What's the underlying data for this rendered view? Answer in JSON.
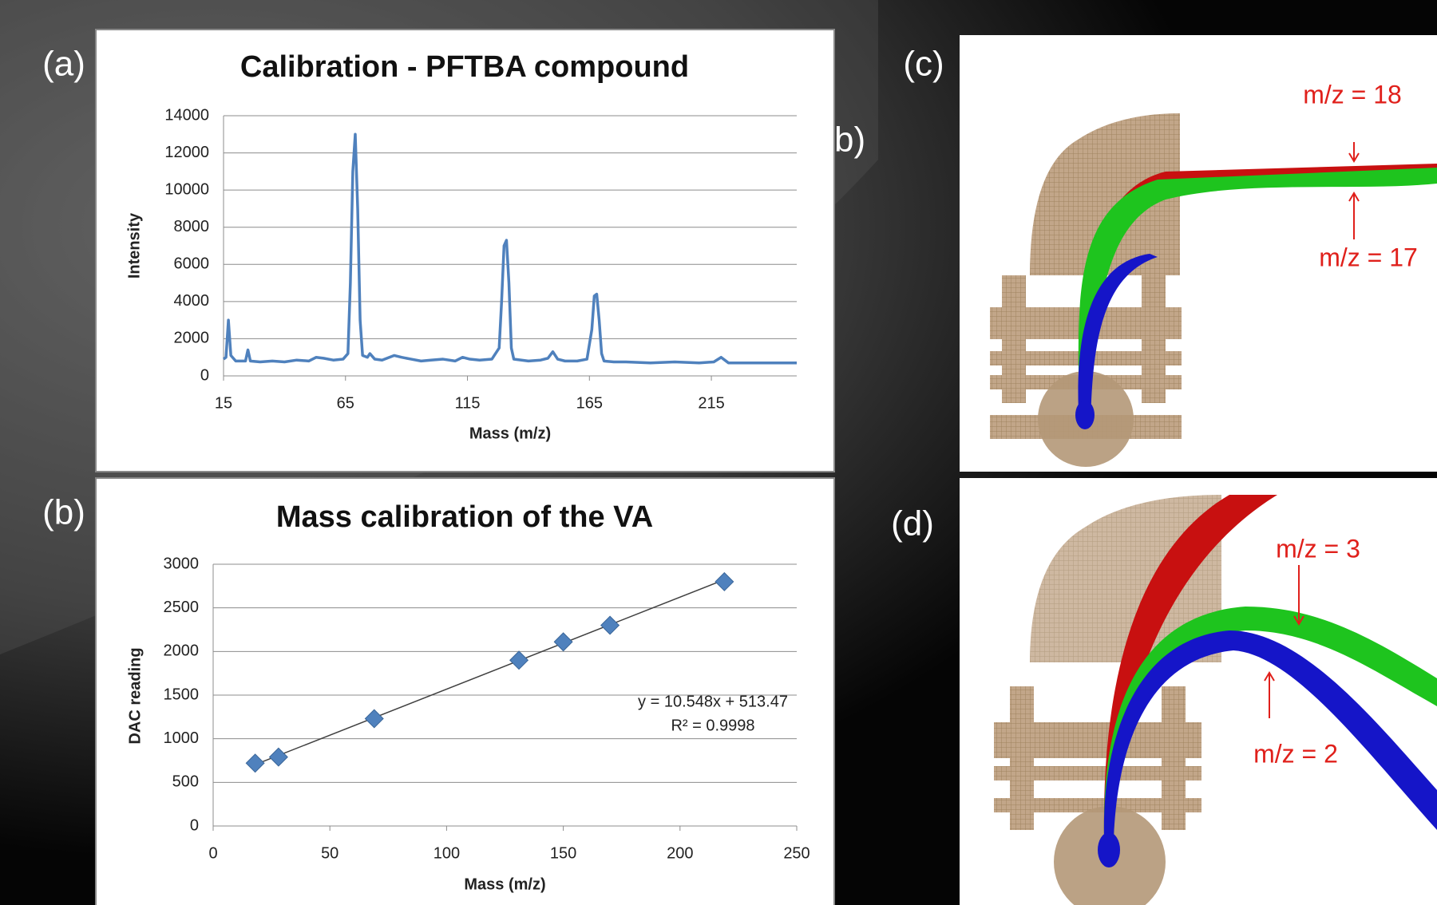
{
  "chart_data": [
    {
      "type": "line",
      "title": "Calibration - PFTBA compound",
      "x_label": "Mass (m/z)",
      "y_label": "Intensity",
      "x": [
        15,
        16,
        17,
        18,
        20,
        24,
        25,
        26,
        30,
        35,
        40,
        45,
        50,
        53,
        56,
        60,
        64,
        66,
        67,
        68,
        69,
        70,
        71,
        72,
        74,
        75,
        77,
        80,
        85,
        88,
        92,
        96,
        100,
        105,
        110,
        113,
        116,
        120,
        125,
        128,
        129,
        130,
        131,
        132,
        133,
        134,
        140,
        145,
        148,
        150,
        152,
        155,
        160,
        164,
        166,
        167,
        168,
        169,
        170,
        171,
        175,
        180,
        190,
        200,
        210,
        216,
        219,
        222,
        230,
        240,
        250
      ],
      "series": [
        {
          "name": "Intensity",
          "color": "#4f81bd",
          "values": [
            900,
            1000,
            3000,
            1100,
            800,
            800,
            1400,
            800,
            750,
            800,
            750,
            850,
            800,
            1000,
            950,
            850,
            900,
            1200,
            5000,
            11000,
            13000,
            9000,
            3000,
            1100,
            1000,
            1200,
            900,
            850,
            1100,
            1000,
            900,
            800,
            850,
            900,
            800,
            1000,
            900,
            850,
            900,
            1500,
            4000,
            7000,
            7300,
            5000,
            1500,
            900,
            800,
            850,
            950,
            1300,
            900,
            800,
            800,
            900,
            2500,
            4300,
            4400,
            3000,
            1200,
            800,
            750,
            750,
            700,
            750,
            700,
            750,
            1000,
            700,
            700,
            700,
            700
          ]
        }
      ],
      "xlim": [
        15,
        250
      ],
      "xticks": [
        15,
        65,
        115,
        165,
        215
      ],
      "ylim": [
        0,
        14000
      ],
      "yticks": [
        0,
        2000,
        4000,
        6000,
        8000,
        10000,
        12000,
        14000
      ],
      "grid": true
    },
    {
      "type": "scatter",
      "title": "Mass calibration of the VA",
      "x_label": "Mass (m/z)",
      "y_label": "DAC reading",
      "x": [
        18,
        28,
        69,
        131,
        150,
        170,
        219
      ],
      "series": [
        {
          "name": "DAC reading",
          "color": "#4f81bd",
          "values": [
            720,
            790,
            1230,
            1900,
            2110,
            2300,
            2800
          ]
        }
      ],
      "trendline": {
        "slope": 10.548,
        "intercept": 513.47,
        "color": "#404040",
        "equation": "y = 10.548x + 513.47",
        "r2": "R² = 0.9998"
      },
      "xlim": [
        0,
        250
      ],
      "xticks": [
        0,
        50,
        100,
        150,
        200,
        250
      ],
      "ylim": [
        0,
        3000
      ],
      "yticks": [
        0,
        500,
        1000,
        1500,
        2000,
        2500,
        3000
      ],
      "grid": true
    }
  ],
  "panels": {
    "labels": [
      "(a)",
      "(b)",
      "(c)",
      "(d)"
    ],
    "stray": "b)",
    "c_annotations": [
      "m/z = 18",
      "m/z = 17"
    ],
    "d_annotations": [
      "m/z = 3",
      "m/z = 2"
    ]
  }
}
